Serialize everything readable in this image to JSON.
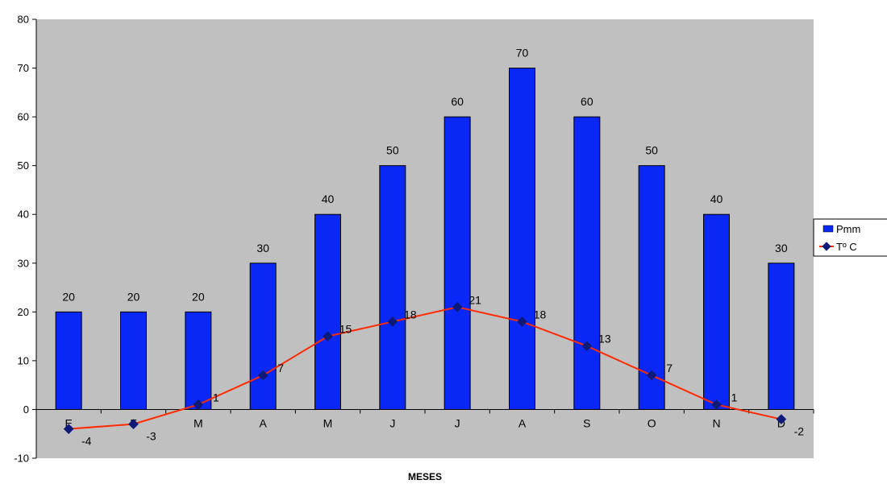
{
  "chart_data": {
    "type": "bar",
    "categories": [
      "E",
      "F",
      "M",
      "A",
      "M",
      "J",
      "J",
      "A",
      "S",
      "O",
      "N",
      "D"
    ],
    "series": [
      {
        "name": "Pmm",
        "type": "bar",
        "color": "#0a28f5",
        "values": [
          20,
          20,
          20,
          30,
          40,
          50,
          60,
          70,
          60,
          50,
          40,
          30
        ]
      },
      {
        "name": "Tº C",
        "type": "line",
        "color": "#ff2a00",
        "marker_color": "#0b1a78",
        "values": [
          -4,
          -3,
          1,
          7,
          15,
          18,
          21,
          18,
          13,
          7,
          1,
          -2
        ]
      }
    ],
    "xlabel": "MESES",
    "ylabel": "",
    "ylim": [
      -10,
      80
    ],
    "yticks": [
      -10,
      0,
      10,
      20,
      30,
      40,
      50,
      60,
      70,
      80
    ],
    "grid": false,
    "plot_background": "#c0c0c0",
    "legend_position": "right"
  }
}
